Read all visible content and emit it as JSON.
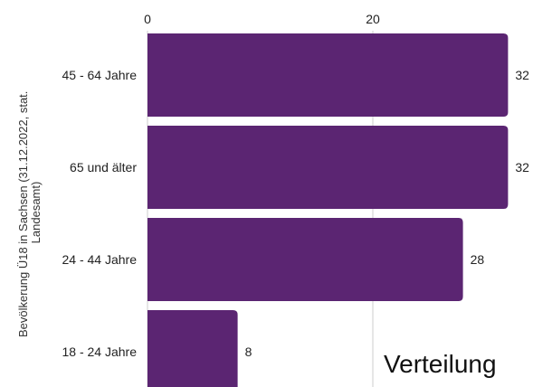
{
  "chart_data": {
    "type": "bar",
    "orientation": "horizontal",
    "categories": [
      "45 - 64 Jahre",
      "65 und älter",
      "24 - 44 Jahre",
      "18 - 24 Jahre"
    ],
    "values": [
      32,
      32,
      28,
      8
    ],
    "value_labels": [
      "32",
      "32",
      "28",
      "8"
    ],
    "x_ticks": [
      "0",
      "20"
    ],
    "xlim": [
      0,
      32
    ],
    "x_axis_position": "top",
    "ylabel_lines": [
      "Bevölkerung Ü18 in Sachsen (31.12.2022, stat.",
      "Landesamt)"
    ],
    "annotation": "Verteilung",
    "grid": true,
    "bar_color": "#5b2572",
    "grid_color": "#cccccc"
  }
}
